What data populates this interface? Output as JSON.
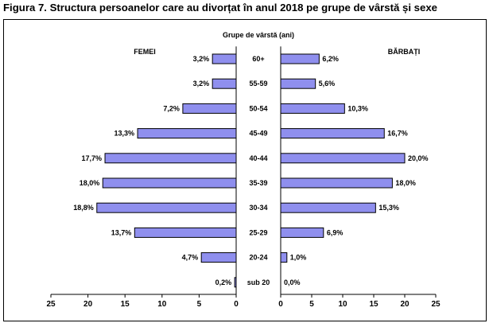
{
  "figure_title": "Figura 7. Structura persoanelor care au divorțat în anul 2018 pe grupe de vârstă și sexe",
  "colors": {
    "bar_fill": "#8f8fee",
    "bar_stroke": "#000000"
  },
  "chart_data": {
    "type": "bar",
    "orientation": "horizontal-population-pyramid",
    "category_header": "Grupe de vârstă (ani)",
    "categories": [
      "60+",
      "55-59",
      "50-54",
      "45-49",
      "40-44",
      "35-39",
      "30-34",
      "25-29",
      "20-24",
      "sub 20"
    ],
    "series": [
      {
        "name": "FEMEI",
        "values": [
          3.2,
          3.2,
          7.2,
          13.3,
          17.7,
          18.0,
          18.8,
          13.7,
          4.7,
          0.2
        ],
        "labels": [
          "3,2%",
          "3,2%",
          "7,2%",
          "13,3%",
          "17,7%",
          "18,0%",
          "18,8%",
          "13,7%",
          "4,7%",
          "0,2%"
        ]
      },
      {
        "name": "BĂRBAȚI",
        "values": [
          6.2,
          5.6,
          10.3,
          16.7,
          20.0,
          18.0,
          15.3,
          6.9,
          1.0,
          0.0
        ],
        "labels": [
          "6,2%",
          "5,6%",
          "10,3%",
          "16,7%",
          "20,0%",
          "18,0%",
          "15,3%",
          "6,9%",
          "1,0%",
          "0,0%"
        ]
      }
    ],
    "xlim_left": [
      25,
      0
    ],
    "xlim_right": [
      0,
      25
    ],
    "left_ticks": [
      "25",
      "20",
      "15",
      "10",
      "5",
      "0"
    ],
    "right_ticks": [
      "0",
      "5",
      "10",
      "15",
      "20",
      "25"
    ],
    "grid": false
  }
}
